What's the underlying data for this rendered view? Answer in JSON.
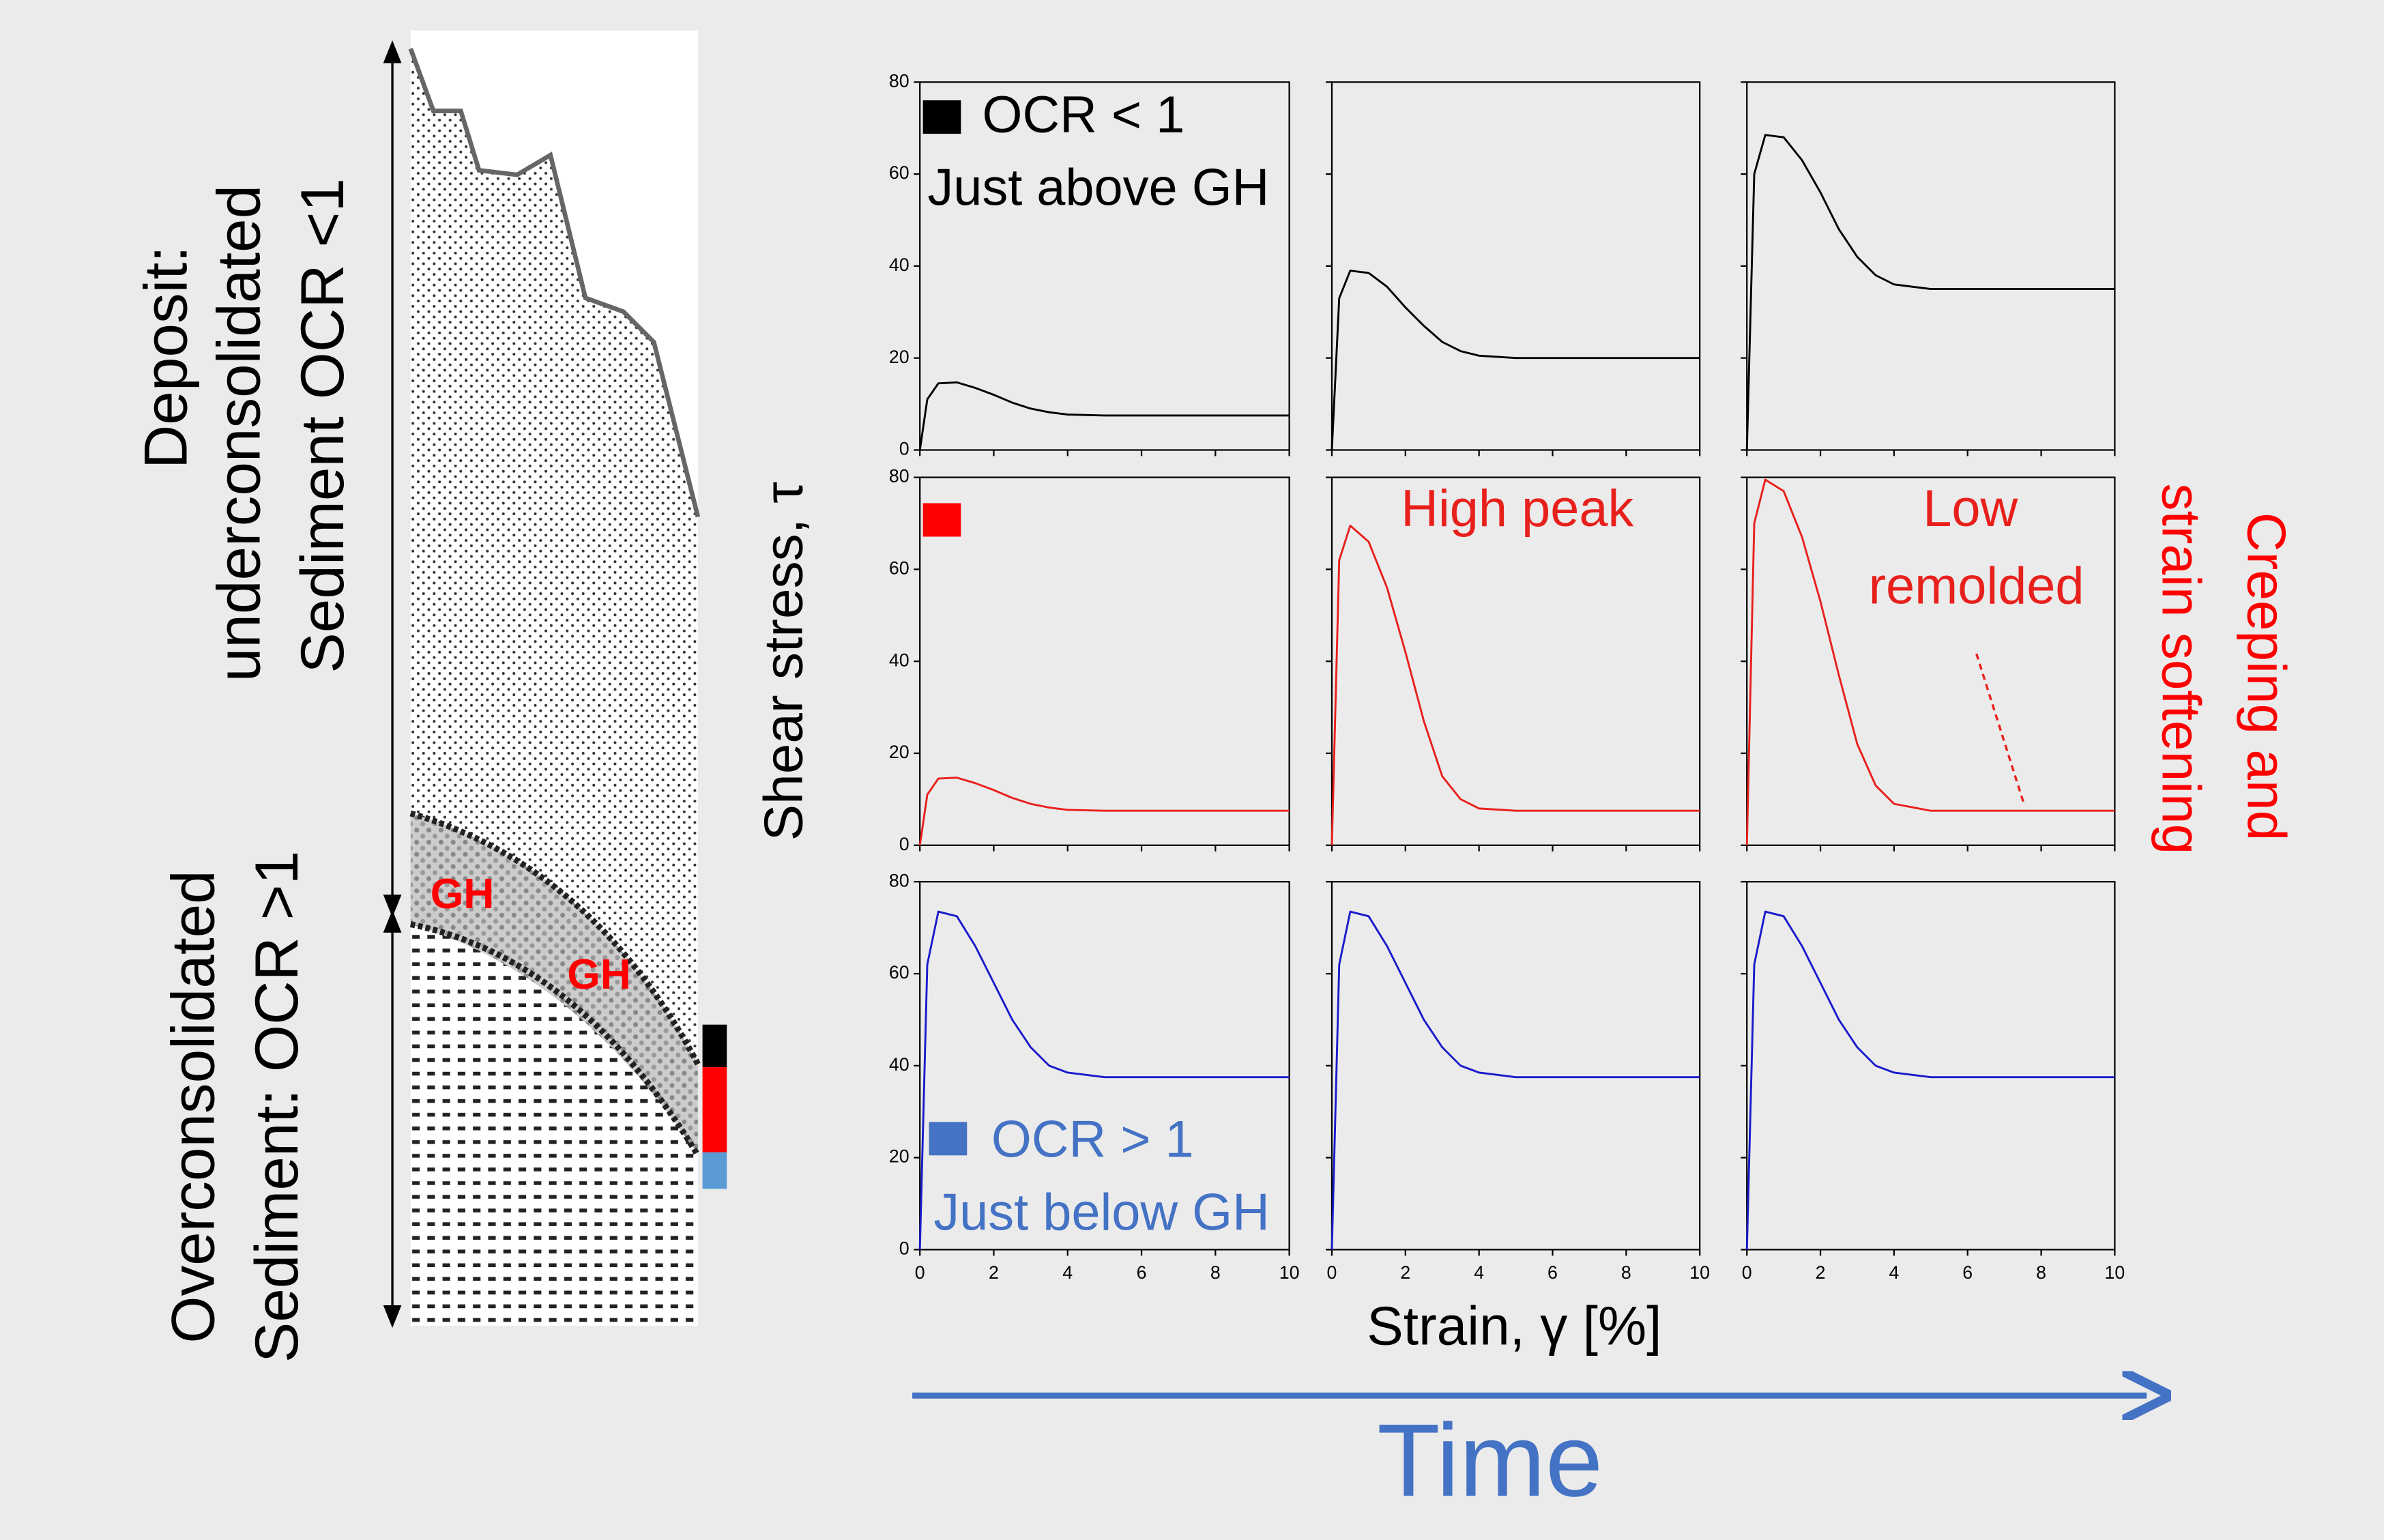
{
  "chart_data": [
    {
      "type": "line",
      "x": [
        0,
        0.2,
        0.5,
        1,
        1.5,
        2,
        2.5,
        3,
        3.5,
        4,
        5,
        6,
        8,
        10
      ],
      "series": [
        {
          "color": "#000000",
          "values": [
            0,
            11,
            14.5,
            14.7,
            13.5,
            12,
            10.3,
            9,
            8.2,
            7.7,
            7.5,
            7.5,
            7.5,
            7.5
          ]
        }
      ],
      "xlim": [
        0,
        10
      ],
      "ylim": [
        0,
        80
      ],
      "xticks": [
        0,
        2,
        4,
        6,
        8,
        10
      ],
      "yticks": [
        0,
        20,
        40,
        60,
        80
      ],
      "annotations": [
        "OCR < 1",
        "Just above GH"
      ],
      "annotation_color": "#000000"
    },
    {
      "type": "line",
      "x": [
        0,
        0.2,
        0.5,
        1,
        1.5,
        2,
        2.5,
        3,
        3.5,
        4,
        5,
        6,
        8,
        10
      ],
      "series": [
        {
          "color": "#000000",
          "values": [
            0,
            33,
            39,
            38.5,
            35.5,
            31,
            27,
            23.5,
            21.5,
            20.5,
            20,
            20,
            20,
            20
          ]
        }
      ],
      "xlim": [
        0,
        10
      ],
      "ylim": [
        0,
        80
      ],
      "xticks": [
        0,
        2,
        4,
        6,
        8,
        10
      ],
      "yticks": [
        0,
        20,
        40,
        60,
        80
      ]
    },
    {
      "type": "line",
      "x": [
        0,
        0.2,
        0.5,
        1,
        1.5,
        2,
        2.5,
        3,
        3.5,
        4,
        5,
        6,
        8,
        10
      ],
      "series": [
        {
          "color": "#000000",
          "values": [
            0,
            60,
            68.5,
            68,
            63,
            56,
            48,
            42,
            38,
            36,
            35,
            35,
            35,
            35
          ]
        }
      ],
      "xlim": [
        0,
        10
      ],
      "ylim": [
        0,
        80
      ],
      "xticks": [
        0,
        2,
        4,
        6,
        8,
        10
      ],
      "yticks": [
        0,
        20,
        40,
        60,
        80
      ]
    },
    {
      "type": "line",
      "x": [
        0,
        0.2,
        0.5,
        1,
        1.5,
        2,
        2.5,
        3,
        3.5,
        4,
        5,
        6,
        8,
        10
      ],
      "series": [
        {
          "color": "#e8201c",
          "values": [
            0,
            11,
            14.5,
            14.7,
            13.5,
            12,
            10.3,
            9,
            8.2,
            7.7,
            7.5,
            7.5,
            7.5,
            7.5
          ]
        }
      ],
      "xlim": [
        0,
        10
      ],
      "ylim": [
        0,
        80
      ],
      "xticks": [
        0,
        2,
        4,
        6,
        8,
        10
      ],
      "yticks": [
        0,
        20,
        40,
        60,
        80
      ]
    },
    {
      "type": "line",
      "x": [
        0,
        0.2,
        0.5,
        1,
        1.5,
        2,
        2.5,
        3,
        3.5,
        4,
        5,
        6,
        8,
        10
      ],
      "series": [
        {
          "color": "#e8201c",
          "values": [
            0,
            62,
            69.5,
            66,
            56,
            42,
            27,
            15,
            10,
            8,
            7.5,
            7.5,
            7.5,
            7.5
          ]
        }
      ],
      "xlim": [
        0,
        10
      ],
      "ylim": [
        0,
        80
      ],
      "xticks": [
        0,
        2,
        4,
        6,
        8,
        10
      ],
      "yticks": [
        0,
        20,
        40,
        60,
        80
      ],
      "annotations": [
        "High peak"
      ],
      "annotation_color": "#e8201c"
    },
    {
      "type": "line",
      "x": [
        0,
        0.2,
        0.5,
        1,
        1.5,
        2,
        2.5,
        3,
        3.5,
        4,
        5,
        6,
        8,
        10
      ],
      "series": [
        {
          "color": "#e8201c",
          "values": [
            0,
            70,
            79.5,
            77,
            67,
            53,
            37,
            22,
            13,
            9,
            7.5,
            7.5,
            7.5,
            7.5
          ]
        }
      ],
      "xlim": [
        0,
        10
      ],
      "ylim": [
        0,
        80
      ],
      "xticks": [
        0,
        2,
        4,
        6,
        8,
        10
      ],
      "yticks": [
        0,
        20,
        40,
        60,
        80
      ],
      "annotations": [
        "Low",
        "remolded"
      ],
      "annotation_color": "#e8201c"
    },
    {
      "type": "line",
      "x": [
        0,
        0.2,
        0.5,
        1,
        1.5,
        2,
        2.5,
        3,
        3.5,
        4,
        5,
        6,
        8,
        10
      ],
      "series": [
        {
          "color": "#1a1acc",
          "values": [
            0,
            62,
            73.5,
            72.5,
            66,
            58,
            50,
            44,
            40,
            38.5,
            37.5,
            37.5,
            37.5,
            37.5
          ]
        }
      ],
      "xlim": [
        0,
        10
      ],
      "ylim": [
        0,
        80
      ],
      "xticks": [
        0,
        2,
        4,
        6,
        8,
        10
      ],
      "yticks": [
        0,
        20,
        40,
        60,
        80
      ],
      "annotations": [
        "OCR > 1",
        "Just below GH"
      ],
      "annotation_color": "#4472c4"
    },
    {
      "type": "line",
      "x": [
        0,
        0.2,
        0.5,
        1,
        1.5,
        2,
        2.5,
        3,
        3.5,
        4,
        5,
        6,
        8,
        10
      ],
      "series": [
        {
          "color": "#1a1acc",
          "values": [
            0,
            62,
            73.5,
            72.5,
            66,
            58,
            50,
            44,
            40,
            38.5,
            37.5,
            37.5,
            37.5,
            37.5
          ]
        }
      ],
      "xlim": [
        0,
        10
      ],
      "ylim": [
        0,
        80
      ],
      "xticks": [
        0,
        2,
        4,
        6,
        8,
        10
      ],
      "yticks": [
        0,
        20,
        40,
        60,
        80
      ]
    },
    {
      "type": "line",
      "x": [
        0,
        0.2,
        0.5,
        1,
        1.5,
        2,
        2.5,
        3,
        3.5,
        4,
        5,
        6,
        8,
        10
      ],
      "series": [
        {
          "color": "#1a1acc",
          "values": [
            0,
            62,
            73.5,
            72.5,
            66,
            58,
            50,
            44,
            40,
            38.5,
            37.5,
            37.5,
            37.5,
            37.5
          ]
        }
      ],
      "xlim": [
        0,
        10
      ],
      "ylim": [
        0,
        80
      ],
      "xticks": [
        0,
        2,
        4,
        6,
        8,
        10
      ],
      "yticks": [
        0,
        20,
        40,
        60,
        80
      ]
    }
  ],
  "figure": {
    "ylabel": "Shear stress, τ",
    "xlabel": "Strain, γ [%]",
    "time_label": "Time",
    "creep_label": [
      "Creeping and",
      "strain softening"
    ]
  },
  "diagram": {
    "upper_label": [
      "Deposit:",
      "underconsolidated",
      "Sediment OCR <1"
    ],
    "lower_label": [
      "Overconsolidated",
      "Sediment: OCR >1"
    ],
    "gh_labels": [
      "GH",
      "GH"
    ]
  }
}
